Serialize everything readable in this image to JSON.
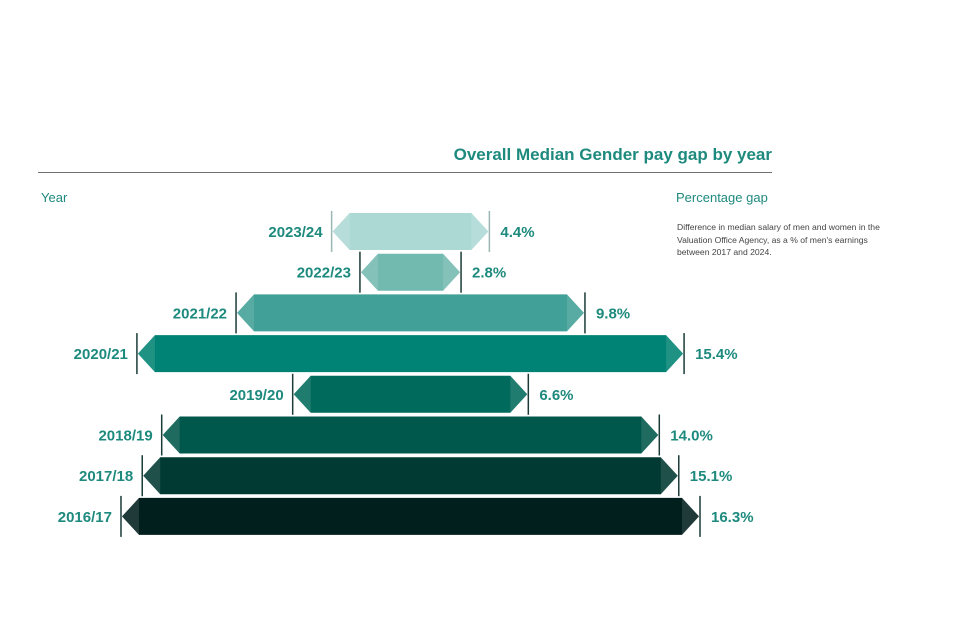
{
  "chart_data": {
    "type": "bar",
    "title": "Overall Median Gender pay gap by year",
    "xlabel": "Year",
    "ylabel": "Percentage gap",
    "note": "Difference in median salary of men and women in the Valuation Office Agency, as a % of men's earnings between 2017 and 2024.",
    "categories": [
      "2023/24",
      "2022/23",
      "2021/22",
      "2020/21",
      "2019/20",
      "2018/19",
      "2017/18",
      "2016/17"
    ],
    "values": [
      4.4,
      2.8,
      9.8,
      15.4,
      6.6,
      14.0,
      15.1,
      16.3
    ],
    "value_labels": [
      "4.4%",
      "2.8%",
      "9.8%",
      "15.4%",
      "6.6%",
      "14.0%",
      "15.1%",
      "16.3%"
    ],
    "colors": [
      "#acd9d4",
      "#72b9b0",
      "#41a097",
      "#008374",
      "#006a5c",
      "#00574b",
      "#003a32",
      "#011f1d"
    ],
    "legend": "none",
    "grid": false
  }
}
